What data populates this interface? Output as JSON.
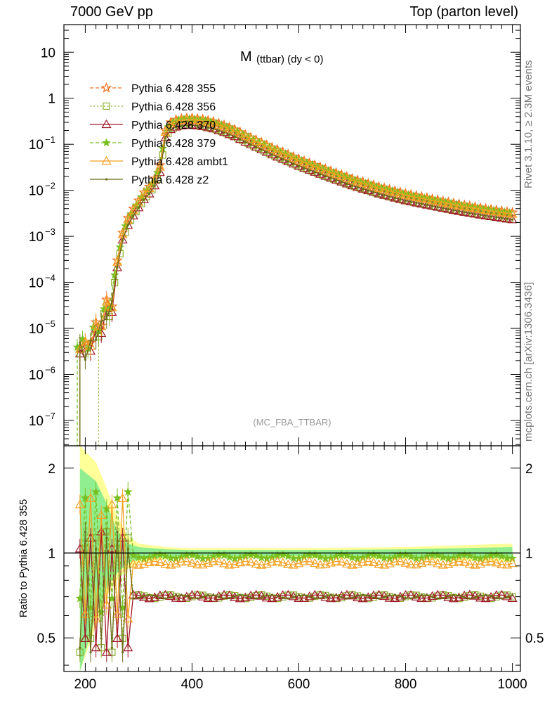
{
  "header": {
    "left_title": "7000 GeV pp",
    "right_title": "Top (parton level)"
  },
  "side_labels": {
    "rivet": "Rivet 3.1.10, ≥ 2.3M events",
    "mcplots": "mcplots.cern.ch [arXiv:1306.3436]"
  },
  "chart_data": [
    {
      "type": "line",
      "title_main": "M",
      "title_sub": "(ttbar) (dy < 0)",
      "watermark": "(MC_FBA_TTBAR)",
      "xlim": [
        160,
        1015
      ],
      "ylim_log10": [
        -7.55,
        1.6
      ],
      "log_y": true,
      "xticks": [
        200,
        400,
        600,
        800,
        1000
      ],
      "ytick_labels": [
        {
          "value": 10,
          "mant": "10",
          "exp": ""
        },
        {
          "value": 1,
          "mant": "1",
          "exp": ""
        },
        {
          "value": 0.1,
          "mant": "10",
          "exp": "−1"
        },
        {
          "value": 0.01,
          "mant": "10",
          "exp": "−2"
        },
        {
          "value": 0.001,
          "mant": "10",
          "exp": "−3"
        },
        {
          "value": 0.0001,
          "mant": "10",
          "exp": "−4"
        },
        {
          "value": 1e-05,
          "mant": "10",
          "exp": "−5"
        },
        {
          "value": 1e-06,
          "mant": "10",
          "exp": "−6"
        },
        {
          "value": 1e-07,
          "mant": "10",
          "exp": "−7"
        }
      ],
      "reference_curve": {
        "x": [
          190,
          200,
          210,
          220,
          230,
          240,
          250,
          260,
          270,
          280,
          290,
          300,
          310,
          320,
          330,
          340,
          350,
          360,
          370,
          380,
          390,
          400,
          420,
          440,
          460,
          480,
          500,
          550,
          600,
          650,
          700,
          750,
          800,
          850,
          900,
          950,
          1000
        ],
        "y": [
          5e-06,
          4e-06,
          6e-06,
          1e-05,
          1.5e-05,
          3e-05,
          4e-05,
          0.0003,
          0.0012,
          0.0025,
          0.004,
          0.006,
          0.009,
          0.012,
          0.018,
          0.035,
          0.2,
          0.3,
          0.34,
          0.36,
          0.37,
          0.37,
          0.35,
          0.31,
          0.26,
          0.21,
          0.16,
          0.085,
          0.048,
          0.029,
          0.018,
          0.012,
          0.0085,
          0.0065,
          0.005,
          0.004,
          0.0033
        ]
      },
      "series": [
        {
          "name": "Pythia 6.428 355",
          "color": "#f07020",
          "dash": "5,3",
          "marker": "star-open",
          "scale": 1.0,
          "start_x": 190
        },
        {
          "name": "Pythia 6.428 356",
          "color": "#8cb030",
          "dash": "2,3",
          "marker": "square-open",
          "scale": 0.7,
          "start_x": 225
        },
        {
          "name": "Pythia 6.428 370",
          "color": "#a01828",
          "dash": "",
          "marker": "triangle-open",
          "scale": 0.7,
          "start_x": 190
        },
        {
          "name": "Pythia 6.428 379",
          "color": "#78c020",
          "dash": "5,3",
          "marker": "star-filled",
          "scale": 0.97,
          "start_x": 185
        },
        {
          "name": "Pythia 6.428 ambt1",
          "color": "#f5a020",
          "dash": "",
          "marker": "triangle-open",
          "scale": 0.92,
          "start_x": 190
        },
        {
          "name": "Pythia 6.428 z2",
          "color": "#6b6b18",
          "dash": "",
          "marker": "dot",
          "scale": 0.7,
          "start_x": 190
        }
      ]
    },
    {
      "type": "line",
      "ylabel": "Ratio to Pythia 6.428 355",
      "xlim": [
        160,
        1015
      ],
      "ylim_log": [
        0.38,
        2.4
      ],
      "log_y": true,
      "xticks": [
        200,
        400,
        600,
        800,
        1000
      ],
      "yticks": [
        0.5,
        1,
        2
      ],
      "ytick_labels": [
        "0.5",
        "1",
        "2"
      ],
      "bands": [
        {
          "name": "yellow",
          "color": "#ffff99",
          "x": [
            190,
            220,
            240,
            260,
            280,
            300,
            350,
            400,
            600,
            800,
            1000
          ],
          "lo": [
            0.38,
            0.55,
            0.7,
            0.8,
            0.88,
            0.92,
            0.95,
            0.96,
            0.96,
            0.95,
            0.93
          ],
          "hi": [
            2.4,
            2.1,
            1.7,
            1.35,
            1.15,
            1.08,
            1.05,
            1.04,
            1.04,
            1.05,
            1.08
          ]
        },
        {
          "name": "green",
          "color": "#90ee90",
          "x": [
            190,
            220,
            240,
            260,
            280,
            300,
            350,
            400,
            600,
            800,
            1000
          ],
          "lo": [
            0.38,
            0.6,
            0.75,
            0.85,
            0.92,
            0.95,
            0.97,
            0.975,
            0.975,
            0.97,
            0.96
          ],
          "hi": [
            2.0,
            1.8,
            1.5,
            1.2,
            1.08,
            1.05,
            1.03,
            1.025,
            1.025,
            1.03,
            1.05
          ]
        }
      ],
      "ratio_levels": [
        {
          "series": "Pythia 6.428 356",
          "level": 0.7
        },
        {
          "series": "Pythia 6.428 370",
          "level": 0.7
        },
        {
          "series": "Pythia 6.428 379",
          "level": 0.97
        },
        {
          "series": "Pythia 6.428 ambt1",
          "level": 0.92
        },
        {
          "series": "Pythia 6.428 z2",
          "level": 0.7
        }
      ]
    }
  ]
}
